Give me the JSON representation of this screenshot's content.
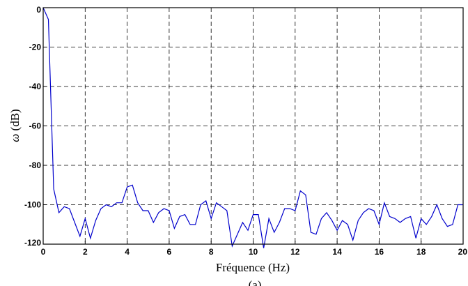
{
  "chart_data": {
    "type": "line",
    "xlabel": "Fréquence (Hz)",
    "ylabel_symbol": "ω",
    "ylabel_unit": "(dB)",
    "caption": "(a)",
    "xlim": [
      0,
      20
    ],
    "ylim": [
      -120,
      0
    ],
    "xticks": [
      0,
      2,
      4,
      6,
      8,
      10,
      12,
      14,
      16,
      18,
      20
    ],
    "yticks": [
      0,
      -20,
      -40,
      -60,
      -80,
      -100,
      -120
    ],
    "grid": true,
    "line_color": "#0000cc",
    "series": [
      {
        "x": [
          0,
          0.25,
          0.5,
          0.75,
          1.0,
          1.25,
          1.5,
          1.75,
          2.0,
          2.25,
          2.5,
          2.75,
          3.0,
          3.25,
          3.5,
          3.75,
          4.0,
          4.25,
          4.5,
          4.75,
          5.0,
          5.25,
          5.5,
          5.75,
          6.0,
          6.25,
          6.5,
          6.75,
          7.0,
          7.25,
          7.5,
          7.75,
          8.0,
          8.25,
          8.5,
          8.75,
          9.0,
          9.25,
          9.5,
          9.75,
          10.0,
          10.25,
          10.5,
          10.75,
          11.0,
          11.25,
          11.5,
          11.75,
          12.0,
          12.25,
          12.5,
          12.75,
          13.0,
          13.25,
          13.5,
          13.75,
          14.0,
          14.25,
          14.5,
          14.75,
          15.0,
          15.25,
          15.5,
          15.75,
          16.0,
          16.25,
          16.5,
          16.75,
          17.0,
          17.25,
          17.5,
          17.75,
          18.0,
          18.25,
          18.5,
          18.75,
          19.0,
          19.25,
          19.5,
          19.75,
          20.0
        ],
        "y": [
          0,
          -6,
          -92,
          -104,
          -101,
          -102,
          -109,
          -116,
          -107,
          -117,
          -108,
          -102,
          -100,
          -101,
          -99,
          -99,
          -91,
          -90,
          -99,
          -103,
          -103,
          -109,
          -104,
          -102,
          -103,
          -112,
          -106,
          -105,
          -110,
          -110,
          -100,
          -98,
          -107,
          -99,
          -101,
          -103,
          -121,
          -115,
          -109,
          -113,
          -105,
          -105,
          -122,
          -107,
          -114,
          -109,
          -102,
          -102,
          -103,
          -93,
          -95,
          -114,
          -115,
          -107,
          -104,
          -108,
          -113,
          -108,
          -110,
          -118,
          -108,
          -104,
          -102,
          -103,
          -110,
          -99,
          -106,
          -107,
          -109,
          -107,
          -106,
          -117,
          -107,
          -110,
          -106,
          -100,
          -107,
          -111,
          -110,
          -100,
          -100
        ]
      }
    ]
  }
}
